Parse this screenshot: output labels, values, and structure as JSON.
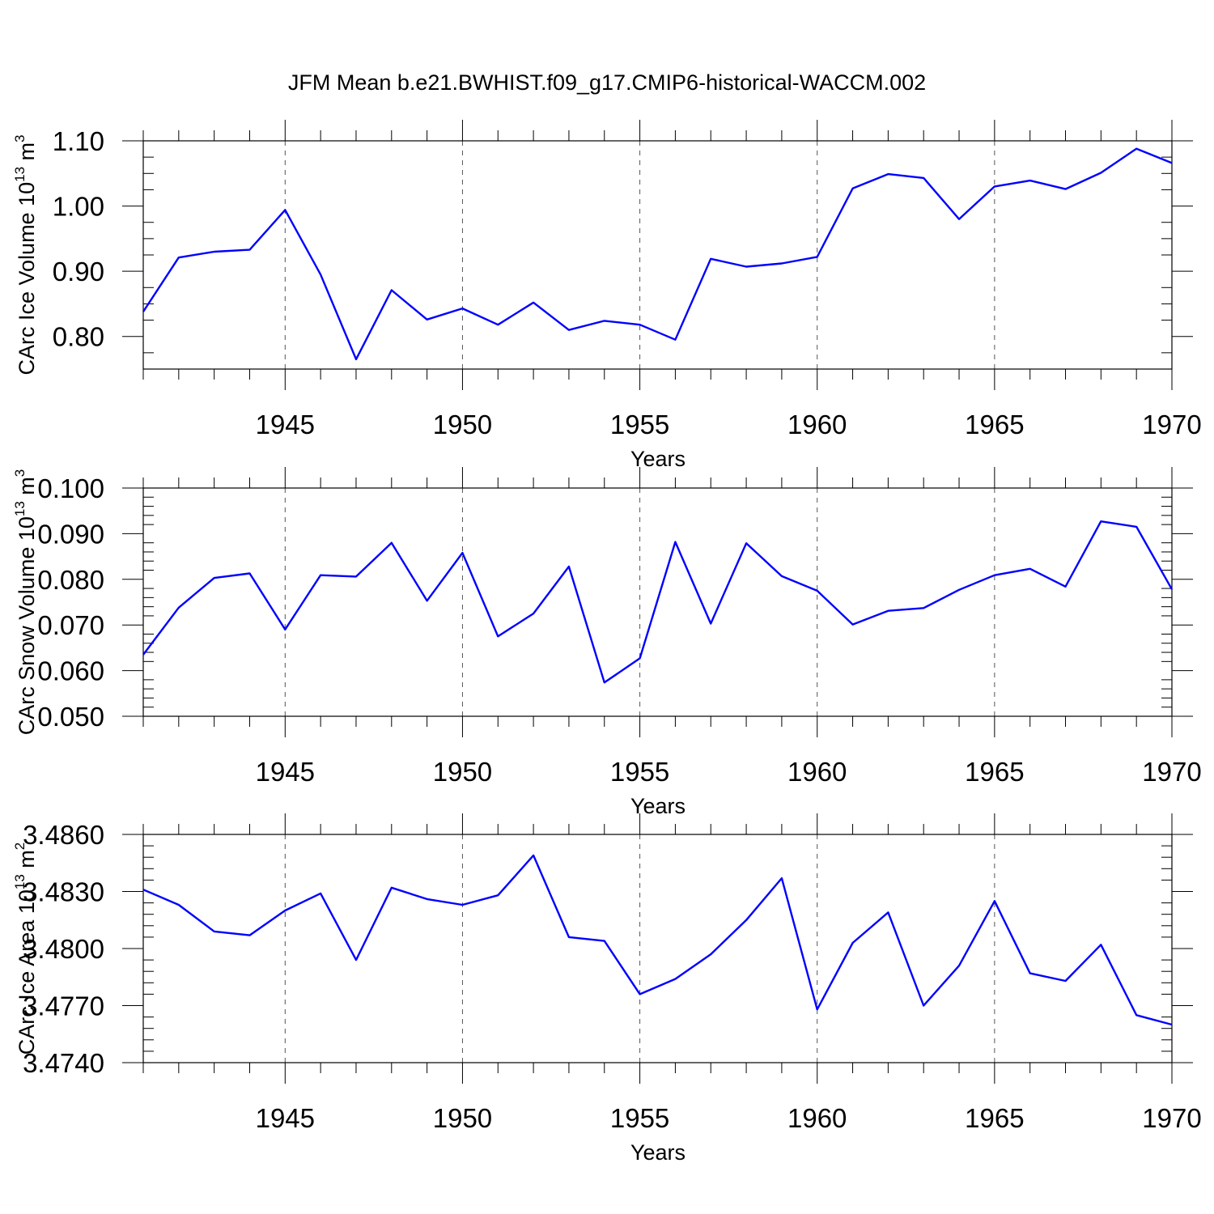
{
  "title": "JFM Mean b.e21.BWHIST.f09_g17.CMIP6-historical-WACCM.002",
  "chart_data": [
    {
      "type": "line",
      "series": [
        {
          "name": "CArc Ice Volume",
          "color": "#0000ff",
          "x": [
            1941,
            1942,
            1943,
            1944,
            1945,
            1946,
            1947,
            1948,
            1949,
            1950,
            1951,
            1952,
            1953,
            1954,
            1955,
            1956,
            1957,
            1958,
            1959,
            1960,
            1961,
            1962,
            1963,
            1964,
            1965,
            1966,
            1967,
            1968,
            1969,
            1970
          ],
          "values": [
            0.838,
            0.921,
            0.93,
            0.933,
            0.994,
            0.895,
            0.765,
            0.871,
            0.826,
            0.843,
            0.818,
            0.852,
            0.81,
            0.824,
            0.818,
            0.795,
            0.919,
            0.907,
            0.912,
            0.922,
            1.027,
            1.049,
            1.043,
            0.98,
            1.03,
            1.039,
            1.026,
            1.051,
            1.088,
            1.066
          ]
        }
      ],
      "ylabel": "CArc Ice Volume 10",
      "ylabel_exp": "13",
      "ylabel_unit": " m",
      "ylabel_unit_exp": "3",
      "xlabel": "Years",
      "xlim": [
        1941,
        1970
      ],
      "ylim": [
        0.75,
        1.1
      ],
      "yticks": [
        0.8,
        0.9,
        1.0,
        1.1
      ],
      "ytick_labels": [
        "0.80",
        "0.90",
        "1.00",
        "1.10"
      ],
      "yminor_step": 0.025,
      "xticks": [
        1945,
        1950,
        1955,
        1960,
        1965,
        1970
      ],
      "xtick_labels": [
        "1945",
        "1950",
        "1955",
        "1960",
        "1965",
        "1970"
      ],
      "grid": "vertical dashed"
    },
    {
      "type": "line",
      "series": [
        {
          "name": "CArc Snow Volume",
          "color": "#0000ff",
          "x": [
            1941,
            1942,
            1943,
            1944,
            1945,
            1946,
            1947,
            1948,
            1949,
            1950,
            1951,
            1952,
            1953,
            1954,
            1955,
            1956,
            1957,
            1958,
            1959,
            1960,
            1961,
            1962,
            1963,
            1964,
            1965,
            1966,
            1967,
            1968,
            1969,
            1970
          ],
          "values": [
            0.0635,
            0.0738,
            0.0803,
            0.0813,
            0.069,
            0.0809,
            0.0806,
            0.088,
            0.0753,
            0.0858,
            0.0675,
            0.0725,
            0.0828,
            0.0574,
            0.0627,
            0.0882,
            0.0703,
            0.0879,
            0.0807,
            0.0775,
            0.0701,
            0.0731,
            0.0737,
            0.0777,
            0.0809,
            0.0823,
            0.0784,
            0.0927,
            0.0915,
            0.0778
          ]
        }
      ],
      "ylabel": "CArc Snow Volume 10",
      "ylabel_exp": "13",
      "ylabel_unit": " m",
      "ylabel_unit_exp": "3",
      "xlabel": "Years",
      "xlim": [
        1941,
        1970
      ],
      "ylim": [
        0.05,
        0.1
      ],
      "yticks": [
        0.05,
        0.06,
        0.07,
        0.08,
        0.09,
        0.1
      ],
      "ytick_labels": [
        "0.050",
        "0.060",
        "0.070",
        "0.080",
        "0.090",
        "0.100"
      ],
      "yminor_step": 0.002,
      "xticks": [
        1945,
        1950,
        1955,
        1960,
        1965,
        1970
      ],
      "xtick_labels": [
        "1945",
        "1950",
        "1955",
        "1960",
        "1965",
        "1970"
      ],
      "grid": "vertical dashed"
    },
    {
      "type": "line",
      "series": [
        {
          "name": "CArc Ice Area",
          "color": "#0000ff",
          "x": [
            1941,
            1942,
            1943,
            1944,
            1945,
            1946,
            1947,
            1948,
            1949,
            1950,
            1951,
            1952,
            1953,
            1954,
            1955,
            1956,
            1957,
            1958,
            1959,
            1960,
            1961,
            1962,
            1963,
            1964,
            1965,
            1966,
            1967,
            1968,
            1969,
            1970
          ],
          "values": [
            3.4831,
            3.4823,
            3.4809,
            3.4807,
            3.482,
            3.4829,
            3.4794,
            3.4832,
            3.4826,
            3.4823,
            3.4828,
            3.4849,
            3.4806,
            3.4804,
            3.4776,
            3.4784,
            3.4797,
            3.4815,
            3.4837,
            3.4768,
            3.4803,
            3.4819,
            3.477,
            3.4791,
            3.4825,
            3.4787,
            3.4783,
            3.4802,
            3.4765,
            3.476
          ]
        }
      ],
      "ylabel": "CArc Ice Area 10",
      "ylabel_exp": "13",
      "ylabel_unit": " m",
      "ylabel_unit_exp": "2",
      "xlabel": "Years",
      "xlim": [
        1941,
        1970
      ],
      "ylim": [
        3.474,
        3.486
      ],
      "yticks": [
        3.474,
        3.477,
        3.48,
        3.483,
        3.486
      ],
      "ytick_labels": [
        "3.4740",
        "3.4770",
        "3.4800",
        "3.4830",
        "3.4860"
      ],
      "yminor_step": 0.0006,
      "xticks": [
        1945,
        1950,
        1955,
        1960,
        1965,
        1970
      ],
      "xtick_labels": [
        "1945",
        "1950",
        "1955",
        "1960",
        "1965",
        "1970"
      ],
      "grid": "vertical dashed"
    }
  ]
}
